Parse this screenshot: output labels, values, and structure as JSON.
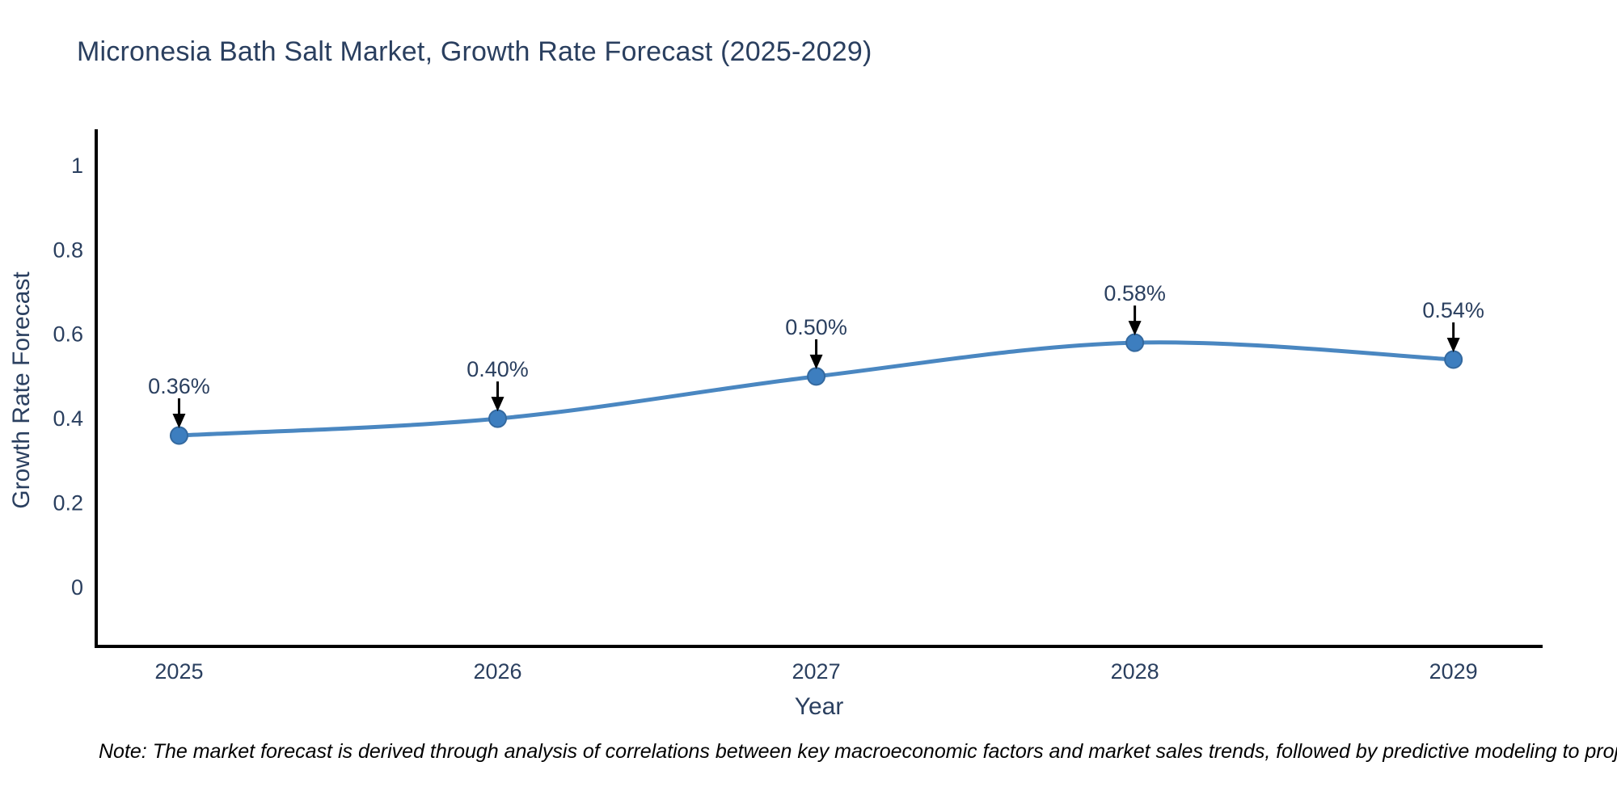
{
  "note": "Note: The market forecast is derived through analysis of correlations between key macroeconomic factors and market sales trends, followed by predictive modeling to project future sales",
  "colors": {
    "background": "#ffffff",
    "text": "#2a3f5f",
    "note_text": "#000000",
    "axis_line": "#000000",
    "trend_line": "#4a87c1",
    "marker_fill": "#3d7ebf",
    "marker_edge": "#34699f",
    "arrow": "#000000"
  },
  "chart_data": {
    "type": "line",
    "title": "Micronesia Bath Salt Market, Growth Rate Forecast (2025-2029)",
    "xlabel": "Year",
    "ylabel": "Growth Rate Forecast",
    "x": [
      2025,
      2026,
      2027,
      2028,
      2029
    ],
    "values": [
      0.36,
      0.4,
      0.5,
      0.58,
      0.54
    ],
    "point_labels": [
      "0.36%",
      "0.40%",
      "0.50%",
      "0.58%",
      "0.54%"
    ],
    "xtick_labels": [
      "2025",
      "2026",
      "2027",
      "2028",
      "2029"
    ],
    "ytick_values": [
      0,
      0.2,
      0.4,
      0.6,
      0.8,
      1
    ],
    "ytick_labels": [
      "0",
      "0.2",
      "0.4",
      "0.6",
      "0.8",
      "1"
    ],
    "xlim": [
      2024.74,
      2029.28
    ],
    "ylim": [
      -0.14,
      1.086
    ],
    "grid": false,
    "legend": false,
    "line_shape": "spline",
    "annotation_arrows": "down"
  }
}
